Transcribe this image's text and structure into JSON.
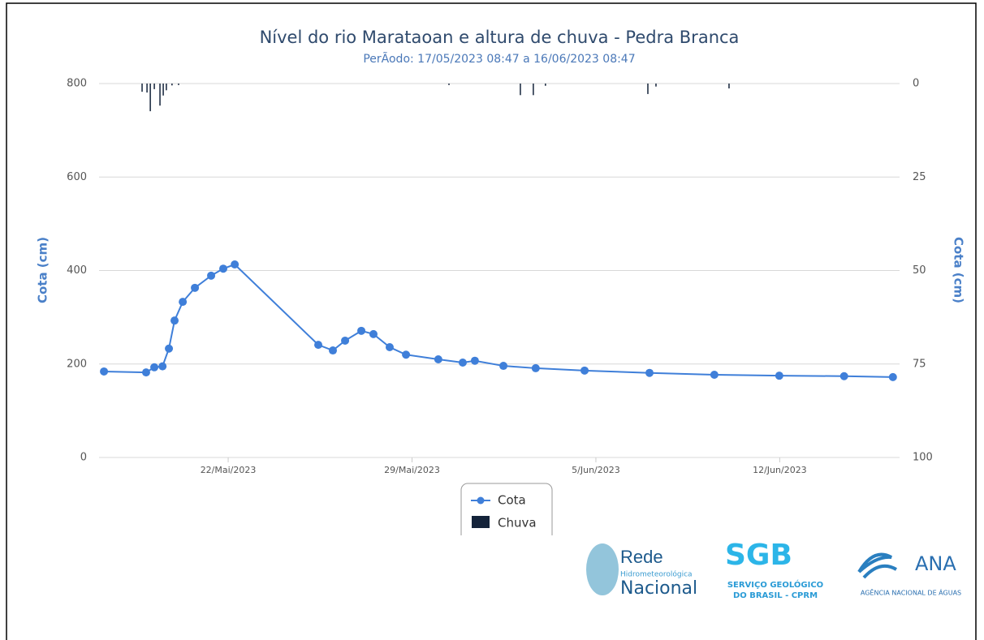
{
  "chart_data": {
    "type": "line_bar",
    "title": "Nível do rio Marataoan e altura de chuva - Pedra Branca",
    "subtitle": "PerÃodo: 17/05/2023 08:47 a 16/06/2023 08:47",
    "ylabel": "Cota (cm)",
    "y2label": "Cota (cm)",
    "xlim": [
      "2023-05-17T02:00",
      "2023-06-16T13:30"
    ],
    "xticks": [
      {
        "value": "2023-05-22T00:00",
        "label": "22/Mai/2023"
      },
      {
        "value": "2023-05-29T00:00",
        "label": "29/Mai/2023"
      },
      {
        "value": "2023-06-05T00:00",
        "label": "5/Jun/2023"
      },
      {
        "value": "2023-06-12T00:00",
        "label": "12/Jun/2023"
      }
    ],
    "ylim": [
      0,
      800
    ],
    "yticks": [
      0,
      200,
      400,
      600,
      800
    ],
    "y2lim": [
      0,
      100
    ],
    "y2ticks": [
      0,
      25,
      50,
      75,
      100
    ],
    "y2_reversed": true,
    "grid": true,
    "legend": "bottom",
    "series": [
      {
        "name": "Cota",
        "type": "line",
        "color": "#3f7fd9",
        "x": [
          "2023-05-17T06:30",
          "2023-05-18T21:00",
          "2023-05-19T04:30",
          "2023-05-19T12:00",
          "2023-05-19T17:50",
          "2023-05-19T23:00",
          "2023-05-20T06:30",
          "2023-05-20T17:35",
          "2023-05-21T08:25",
          "2023-05-21T19:30",
          "2023-05-22T06:00",
          "2023-05-25T10:20",
          "2023-05-25T23:40",
          "2023-05-26T10:50",
          "2023-05-27T01:40",
          "2023-05-27T12:45",
          "2023-05-28T03:35",
          "2023-05-28T18:30",
          "2023-05-30T00:00",
          "2023-05-30T22:20",
          "2023-05-31T09:25",
          "2023-06-01T11:30",
          "2023-06-02T17:00",
          "2023-06-04T13:40",
          "2023-06-07T01:00",
          "2023-06-09T12:15",
          "2023-06-11T23:35",
          "2023-06-14T10:50",
          "2023-06-16T07:25"
        ],
        "values": [
          184,
          182,
          193,
          195,
          233,
          293,
          333,
          363,
          389,
          404,
          413,
          241,
          229,
          250,
          271,
          264,
          236,
          220,
          210,
          203,
          207,
          196,
          191,
          186,
          181,
          177,
          175,
          174,
          172
        ]
      },
      {
        "name": "Chuva",
        "type": "bar",
        "axis": "y2",
        "color": "#14233a",
        "x": [
          "2023-05-18T17:20",
          "2023-05-18T21:50",
          "2023-05-19T00:50",
          "2023-05-19T04:30",
          "2023-05-19T09:40",
          "2023-05-19T12:40",
          "2023-05-19T15:30",
          "2023-05-19T20:40",
          "2023-05-20T02:40",
          "2023-05-30T09:45",
          "2023-06-02T03:00",
          "2023-06-02T14:50",
          "2023-06-03T01:55",
          "2023-06-06T23:30",
          "2023-06-07T06:55",
          "2023-06-10T01:40"
        ],
        "values": [
          2.2,
          2.4,
          7.4,
          1.5,
          5.9,
          3.2,
          1.8,
          0.5,
          0.4,
          0.4,
          3.1,
          3.1,
          0.6,
          2.8,
          0.8,
          1.3
        ]
      }
    ]
  },
  "logos": {
    "rede": [
      "Rede",
      "Hidrometeorológica",
      "Nacional"
    ],
    "sgb": [
      "SGB",
      "SERVIÇO GEOLÓGICO",
      "DO BRASIL - CPRM"
    ],
    "ana": [
      "ANA",
      "AGÊNCIA NACIONAL DE ÁGUAS"
    ]
  }
}
